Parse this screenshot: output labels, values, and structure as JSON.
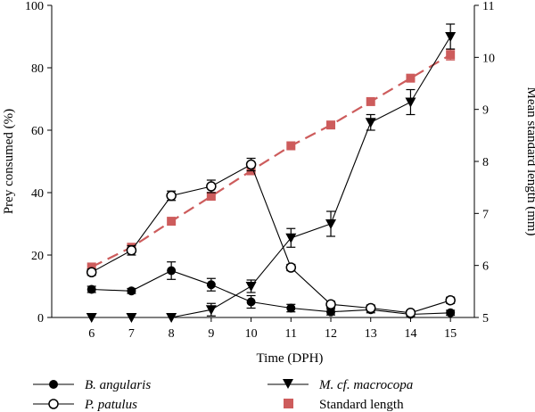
{
  "chart_data": {
    "type": "line",
    "title": "",
    "xlabel": "Time (DPH)",
    "ylabel_left": "Prey consumed (%)",
    "ylabel_right": "Mean standard length (mm)",
    "x": [
      6,
      7,
      8,
      9,
      10,
      11,
      12,
      13,
      14,
      15
    ],
    "xlim": [
      5,
      15.6
    ],
    "ylim_left": [
      0,
      100
    ],
    "ylim_right": [
      5,
      11
    ],
    "yticks_left": [
      0,
      20,
      40,
      60,
      80,
      100
    ],
    "yticks_right": [
      5,
      6,
      7,
      8,
      9,
      10,
      11
    ],
    "grid": false,
    "legend_position": "bottom",
    "series": [
      {
        "name": "B. angularis",
        "axis": "left",
        "marker": "filled-circle",
        "color": "#000000",
        "values": [
          9,
          8.5,
          15,
          10.5,
          5,
          3,
          1.8,
          2.5,
          1,
          1.5
        ],
        "errors": [
          1,
          0.8,
          2.8,
          2,
          2,
          1.2,
          1,
          1,
          0.6,
          0.8
        ]
      },
      {
        "name": "P. patulus",
        "axis": "left",
        "marker": "open-circle",
        "color": "#000000",
        "values": [
          14.5,
          21.5,
          39,
          42,
          49,
          16,
          4.2,
          3,
          1.5,
          5.5
        ],
        "errors": [
          1,
          1.5,
          1.5,
          2,
          2,
          1,
          1,
          1,
          0.6,
          1
        ]
      },
      {
        "name": "M. cf. macrocopa",
        "axis": "left",
        "marker": "filled-triangle-down",
        "color": "#000000",
        "values": [
          0,
          0,
          0,
          2.5,
          10,
          25.5,
          30,
          62.5,
          69,
          90
        ],
        "errors": [
          0,
          0,
          0,
          2,
          2,
          3,
          4,
          2.5,
          4,
          4
        ]
      },
      {
        "name": "Standard length",
        "axis": "right",
        "marker": "filled-square",
        "color": "#cd5c5c",
        "line": "dashed",
        "values": [
          5.97,
          6.35,
          6.85,
          7.33,
          7.82,
          8.3,
          8.7,
          9.15,
          9.6,
          10.05
        ],
        "errors": [
          0,
          0,
          0,
          0,
          0,
          0,
          0,
          0,
          0,
          0.1
        ]
      }
    ]
  },
  "legend": {
    "b_angularis": "B. angularis",
    "p_patulus": "P. patulus",
    "m_prefix": "M. cf. ",
    "m_species": "macrocopa",
    "standard_length": "Standard length"
  }
}
